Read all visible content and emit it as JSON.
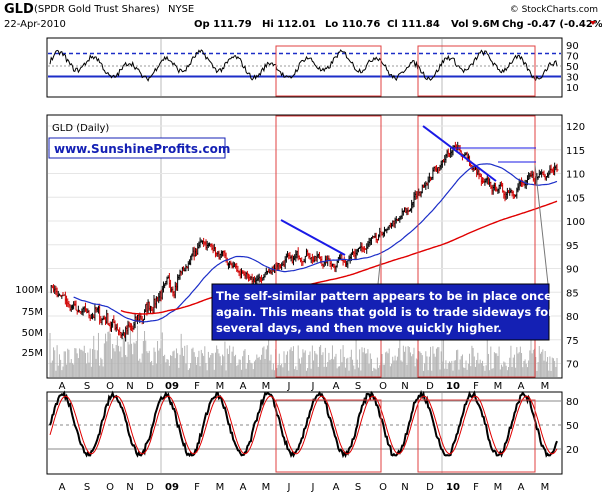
{
  "header": {
    "symbol": "GLD",
    "name": "(SPDR Gold Trust Shares)",
    "exchange": "NYSE",
    "date": "22-Apr-2010",
    "open": "Op 111.79",
    "high": "Hi 112.01",
    "low": "Lo 110.76",
    "close": "Cl 111.84",
    "volume": "Vol 9.6M",
    "change": "Chg -0.47 (-0.42%)",
    "watermark": "© StockCharts.com"
  },
  "colors": {
    "price_up": "#000000",
    "price_down": "#d00000",
    "sma_short": "#1c2ec8",
    "sma_long": "#e00000",
    "volume": "#b4b4b4",
    "trend_lines": "#1a1ae6",
    "highlight_box": "#e04040",
    "rsi_line": "#000000",
    "stoch_k": "#000000",
    "stoch_d": "#e00000",
    "annotation_text": "#ffffff",
    "annotation_bg": "#1420b4",
    "logo_text": "#1420b4"
  },
  "x_months": [
    "A",
    "S",
    "O",
    "N",
    "D",
    "09",
    "F",
    "M",
    "A",
    "M",
    "J",
    "J",
    "A",
    "S",
    "O",
    "N",
    "D",
    "10",
    "F",
    "M",
    "A",
    "M"
  ],
  "panels": {
    "rsi": {
      "ticks": [
        "90",
        "70",
        "50",
        "30",
        "10"
      ]
    },
    "price": {
      "label": "GLD (Daily)",
      "logo": "www.SunshineProfits.com",
      "ticks": [
        "120",
        "115",
        "110",
        "105",
        "100",
        "95",
        "90",
        "85",
        "80",
        "75",
        "70"
      ],
      "volume_ticks": [
        "100M",
        "75M",
        "50M",
        "25M"
      ],
      "annotation": [
        "The self-similar pattern appears to be in place once",
        "again. This means that gold is to trade sideways for",
        "several days, and then move quickly higher."
      ]
    },
    "stoch": {
      "ticks": [
        "80",
        "50",
        "20"
      ]
    }
  },
  "chart_data": {
    "type": "line",
    "title": "GLD (SPDR Gold Trust Shares) NYSE",
    "x": [
      "2008-08",
      "2008-09",
      "2008-10",
      "2008-11",
      "2008-12",
      "2009-01",
      "2009-02",
      "2009-03",
      "2009-04",
      "2009-05",
      "2009-06",
      "2009-07",
      "2009-08",
      "2009-09",
      "2009-10",
      "2009-11",
      "2009-12",
      "2010-01",
      "2010-02",
      "2010-03",
      "2010-04"
    ],
    "series": [
      {
        "name": "GLD (Daily)",
        "values": [
          86,
          81,
          80,
          76,
          83,
          88,
          96,
          91,
          87,
          91,
          93,
          91,
          93,
          97,
          102,
          110,
          116,
          108,
          106,
          109,
          111.84
        ]
      }
    ],
    "ylim": [
      66,
      121
    ],
    "annotations": [
      "The self-similar pattern appears to be in place once again. This means that gold is to trade sideways for several days, and then move quickly higher."
    ]
  }
}
